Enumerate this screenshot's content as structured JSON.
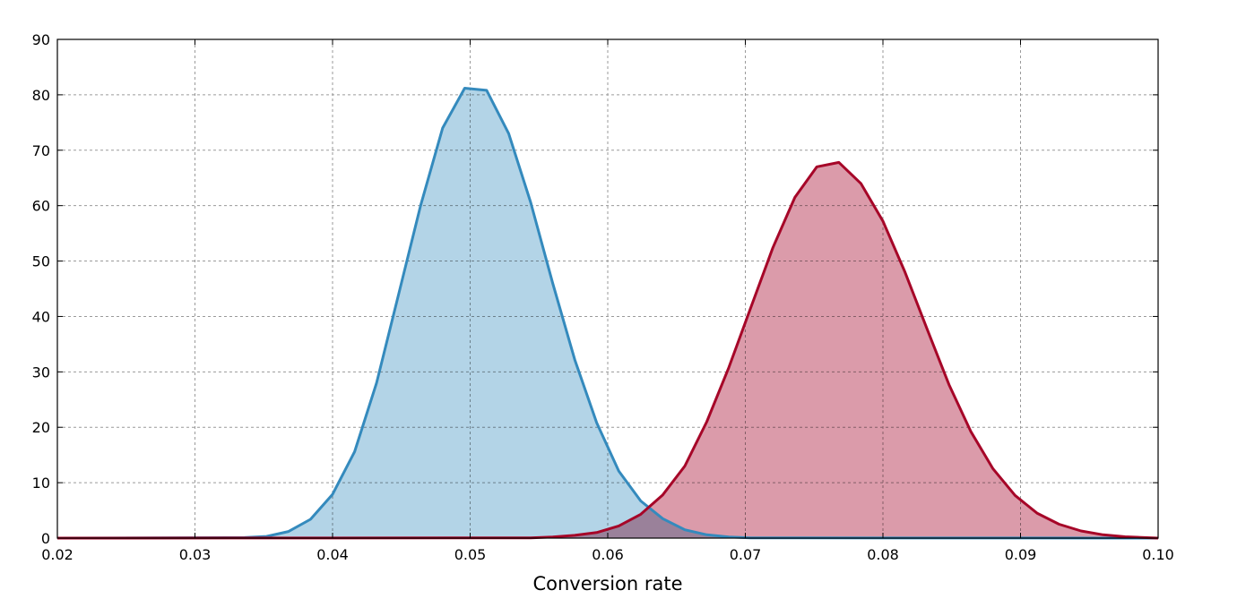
{
  "chart_data": {
    "type": "area",
    "title": "",
    "xlabel": "Conversion rate",
    "ylabel": "",
    "xlim": [
      0.02,
      0.1
    ],
    "ylim": [
      0,
      90
    ],
    "grid": true,
    "x_ticks": [
      "0.02",
      "0.03",
      "0.04",
      "0.05",
      "0.06",
      "0.07",
      "0.08",
      "0.09",
      "0.10"
    ],
    "y_ticks": [
      "0",
      "10",
      "20",
      "30",
      "40",
      "50",
      "60",
      "70",
      "80",
      "90"
    ],
    "series": [
      {
        "line_color": "#348abd",
        "fill_color": "#a6cde3",
        "x": [
          0.02,
          0.0336,
          0.0352,
          0.0368,
          0.0384,
          0.04,
          0.0416,
          0.0432,
          0.0448,
          0.0464,
          0.048,
          0.0496,
          0.0512,
          0.0528,
          0.0544,
          0.056,
          0.0576,
          0.0592,
          0.0608,
          0.0624,
          0.064,
          0.0656,
          0.0672,
          0.0688,
          0.0704,
          0.1
        ],
        "y": [
          0,
          0.1,
          0.3,
          1.2,
          3.4,
          7.9,
          15.6,
          28,
          44,
          60,
          74,
          81.2,
          80.8,
          73,
          60.6,
          46,
          32.2,
          20.8,
          12.1,
          6.7,
          3.5,
          1.5,
          0.6,
          0.2,
          0.05,
          0
        ]
      },
      {
        "line_color": "#a60628",
        "fill_color": "#d58a9b",
        "x": [
          0.02,
          0.0544,
          0.056,
          0.0576,
          0.0592,
          0.0608,
          0.0624,
          0.064,
          0.0656,
          0.0672,
          0.0688,
          0.0704,
          0.072,
          0.0736,
          0.0752,
          0.0768,
          0.0784,
          0.08,
          0.0816,
          0.0832,
          0.0848,
          0.0864,
          0.088,
          0.0896,
          0.0912,
          0.0928,
          0.0944,
          0.096,
          0.0976,
          0.1
        ],
        "y": [
          0,
          0.05,
          0.2,
          0.5,
          1.0,
          2.2,
          4.3,
          7.8,
          13,
          21,
          30.8,
          41.6,
          52.4,
          61.5,
          67,
          67.8,
          64,
          57.2,
          48,
          37.8,
          27.7,
          19.2,
          12.5,
          7.7,
          4.5,
          2.5,
          1.3,
          0.6,
          0.25,
          0
        ]
      }
    ]
  }
}
